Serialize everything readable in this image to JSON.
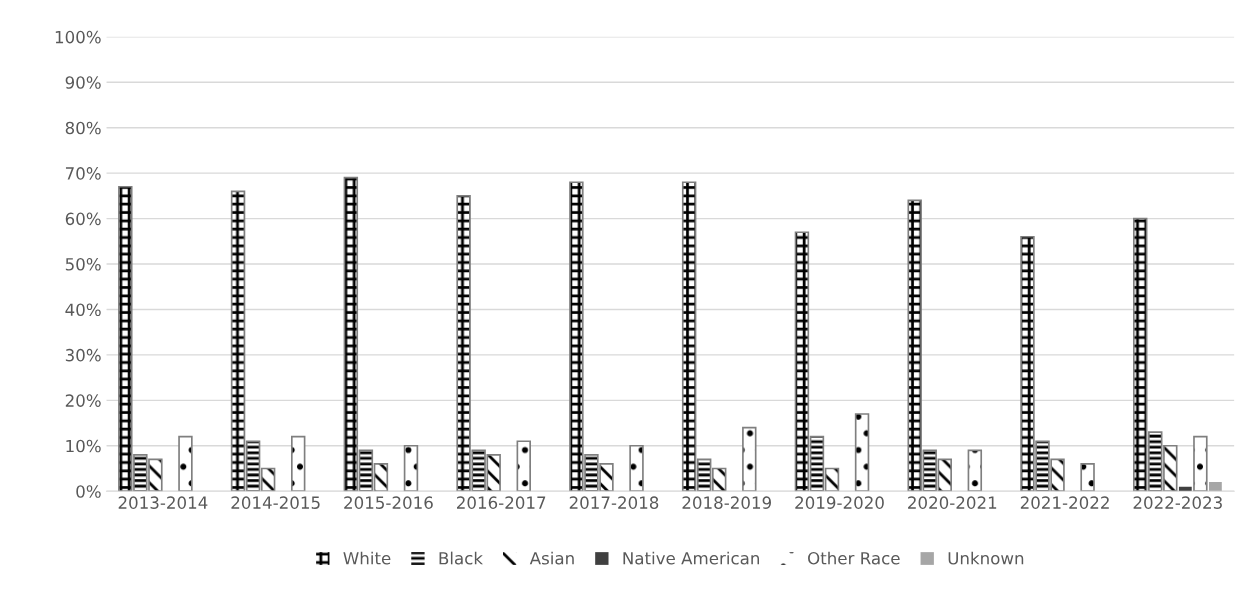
{
  "chart_data": {
    "type": "bar",
    "categories": [
      "2013-2014",
      "2014-2015",
      "2015-2016",
      "2016-2017",
      "2017-2018",
      "2018-2019",
      "2019-2020",
      "2020-2021",
      "2021-2022",
      "2022-2023"
    ],
    "series": [
      {
        "name": "White",
        "color": "#000000",
        "values": [
          67,
          66,
          69,
          65,
          68,
          68,
          57,
          64,
          56,
          60
        ]
      },
      {
        "name": "Black",
        "color": "#000000",
        "values": [
          8,
          11,
          9,
          9,
          8,
          7,
          12,
          9,
          11,
          13
        ]
      },
      {
        "name": "Asian",
        "color": "#000000",
        "values": [
          7,
          5,
          6,
          8,
          6,
          5,
          5,
          7,
          7,
          10
        ]
      },
      {
        "name": "Native American",
        "color": "#404040",
        "values": [
          0,
          0,
          0,
          0,
          0,
          0,
          0,
          0,
          0,
          1
        ]
      },
      {
        "name": "Other Race",
        "color": "#000000",
        "values": [
          12,
          12,
          10,
          11,
          10,
          14,
          17,
          9,
          6,
          12
        ]
      },
      {
        "name": "Unknown",
        "color": "#a6a6a6",
        "values": [
          0,
          0,
          0,
          0,
          0,
          0,
          0,
          0,
          0,
          2
        ]
      }
    ],
    "ylim": [
      0,
      100
    ],
    "yticks": [
      {
        "value": 0,
        "label": "0%"
      },
      {
        "value": 10,
        "label": "10%"
      },
      {
        "value": 20,
        "label": "20%"
      },
      {
        "value": 30,
        "label": "30%"
      },
      {
        "value": 40,
        "label": "40%"
      },
      {
        "value": 50,
        "label": "50%"
      },
      {
        "value": 60,
        "label": "60%"
      },
      {
        "value": 70,
        "label": "70%"
      },
      {
        "value": 80,
        "label": "80%"
      },
      {
        "value": 90,
        "label": "90%"
      },
      {
        "value": 100,
        "label": "100%"
      }
    ],
    "grid": "y",
    "legend": "bottom"
  }
}
